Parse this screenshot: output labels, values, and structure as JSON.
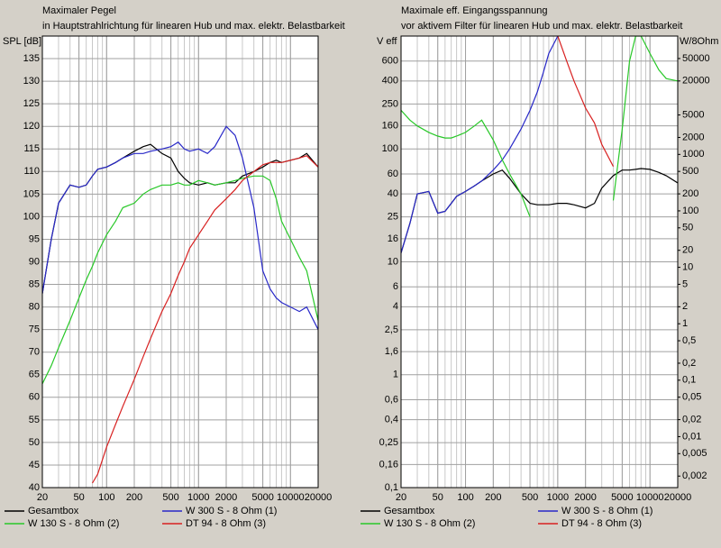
{
  "chart_data": [
    {
      "type": "line",
      "title": "Maximaler Pegel",
      "subtitle": "in Hauptstrahlrichtung für linearen Hub und max. elektr. Belastbarkeit",
      "y_label": "SPL [dB]",
      "xlog": true,
      "ylog": false,
      "grid": true,
      "xlim": [
        20,
        20000
      ],
      "ylim": [
        40,
        140
      ],
      "xticks": [
        20,
        50,
        100,
        200,
        500,
        1000,
        2000,
        5000,
        10000,
        20000
      ],
      "yticks": [
        40,
        45,
        50,
        55,
        60,
        65,
        70,
        75,
        80,
        85,
        90,
        95,
        100,
        105,
        110,
        115,
        120,
        125,
        130,
        135
      ],
      "x": [
        20,
        25,
        30,
        40,
        50,
        60,
        70,
        80,
        100,
        125,
        150,
        200,
        250,
        300,
        400,
        500,
        600,
        700,
        800,
        1000,
        1250,
        1500,
        2000,
        2500,
        3000,
        4000,
        5000,
        6000,
        7000,
        8000,
        10000,
        12500,
        15000,
        20000
      ],
      "series": [
        {
          "name": "Gesamtbox",
          "color": "#000000",
          "values": [
            83,
            95,
            103,
            107,
            106.5,
            107,
            109,
            110.5,
            111,
            112,
            113,
            114.5,
            115.5,
            116,
            114,
            113,
            110,
            108.5,
            107.5,
            107,
            107.5,
            107,
            107.5,
            107.5,
            109,
            110,
            111,
            112,
            112.5,
            112,
            112.5,
            113,
            114,
            111
          ]
        },
        {
          "name": "W 300 S - 8 Ohm (1)",
          "color": "#2828c8",
          "values": [
            83,
            95,
            103,
            107,
            106.5,
            107,
            109,
            110.5,
            111,
            112,
            113,
            114,
            114,
            114.5,
            115,
            115.5,
            116.5,
            115,
            114.5,
            115,
            114,
            115.5,
            120,
            118,
            113,
            102,
            88,
            84,
            82,
            81,
            80,
            79,
            80,
            75
          ]
        },
        {
          "name": "W 130 S - 8 Ohm (2)",
          "color": "#28c828",
          "values": [
            63,
            67,
            71,
            77,
            82,
            86,
            89,
            92,
            96,
            99,
            102,
            103,
            105,
            106,
            107,
            107,
            107.5,
            107,
            107,
            108,
            107.5,
            107,
            107.5,
            108,
            108.5,
            109,
            109,
            108,
            104,
            99,
            95,
            91,
            88,
            77
          ]
        },
        {
          "name": "DT 94 - 8 Ohm (3)",
          "color": "#d82020",
          "values": [
            null,
            null,
            null,
            null,
            null,
            null,
            41,
            43,
            49,
            54,
            58,
            64,
            69,
            73,
            79,
            83,
            87,
            90,
            93,
            96,
            99,
            101.5,
            104,
            106,
            108,
            110,
            111.5,
            112,
            112,
            112,
            112.5,
            113,
            113.5,
            111
          ]
        }
      ]
    },
    {
      "type": "line",
      "title": "Maximale eff. Eingangsspannung",
      "subtitle": "vor aktivem Filter für linearen Hub und max. elektr. Belastbarkeit",
      "y_label": "V eff",
      "y2_label": "W/8Ohm",
      "xlog": true,
      "ylog": true,
      "y2log": true,
      "grid": true,
      "xlim": [
        20,
        20000
      ],
      "ylim": [
        0.1,
        1000
      ],
      "y2lim": [
        0.00125,
        125000
      ],
      "xticks": [
        20,
        50,
        100,
        200,
        500,
        1000,
        2000,
        5000,
        10000,
        20000
      ],
      "yticks": [
        {
          "value": 0.1,
          "label": "0,1"
        },
        {
          "value": 0.16,
          "label": "0,16"
        },
        {
          "value": 0.25,
          "label": "0,25"
        },
        {
          "value": 0.4,
          "label": "0,4"
        },
        {
          "value": 0.6,
          "label": "0,6"
        },
        1,
        {
          "value": 1.6,
          "label": "1,6"
        },
        {
          "value": 2.5,
          "label": "2,5"
        },
        4,
        6,
        10,
        16,
        25,
        40,
        60,
        100,
        160,
        250,
        400,
        600
      ],
      "y2ticks": [
        {
          "value": 0.002,
          "label": "0,002"
        },
        {
          "value": 0.005,
          "label": "0,005"
        },
        {
          "value": 0.01,
          "label": "0,01"
        },
        {
          "value": 0.02,
          "label": "0,02"
        },
        {
          "value": 0.05,
          "label": "0,05"
        },
        {
          "value": 0.1,
          "label": "0,1"
        },
        {
          "value": 0.2,
          "label": "0,2"
        },
        {
          "value": 0.5,
          "label": "0,5"
        },
        1,
        2,
        5,
        10,
        20,
        50,
        100,
        200,
        500,
        1000,
        2000,
        5000,
        20000,
        50000
      ],
      "x": [
        20,
        25,
        30,
        40,
        50,
        60,
        70,
        80,
        100,
        125,
        150,
        200,
        250,
        300,
        400,
        500,
        600,
        700,
        800,
        1000,
        1250,
        1500,
        2000,
        2500,
        3000,
        4000,
        5000,
        6000,
        7000,
        8000,
        10000,
        12500,
        15000,
        20000
      ],
      "series": [
        {
          "name": "Gesamtbox",
          "color": "#000000",
          "values": [
            12,
            22,
            40,
            42,
            27,
            28,
            33,
            38,
            42,
            47,
            52,
            60,
            65,
            55,
            40,
            33,
            32,
            32,
            32,
            33,
            33,
            32,
            30,
            33,
            45,
            58,
            65,
            65,
            66,
            67,
            66,
            62,
            58,
            50
          ]
        },
        {
          "name": "W 300 S - 8 Ohm (1)",
          "color": "#2828c8",
          "values": [
            12,
            22,
            40,
            42,
            27,
            28,
            33,
            38,
            42,
            47,
            52,
            65,
            80,
            100,
            150,
            220,
            320,
            480,
            700,
            1000,
            null,
            null,
            null,
            null,
            null,
            null,
            null,
            null,
            null,
            null,
            null,
            null,
            null,
            null
          ]
        },
        {
          "name": "W 130 S - 8 Ohm (2)",
          "color": "#28c828",
          "values": [
            220,
            180,
            160,
            140,
            130,
            125,
            125,
            130,
            140,
            160,
            180,
            120,
            80,
            60,
            40,
            25,
            null,
            null,
            null,
            null,
            null,
            null,
            null,
            null,
            null,
            35,
            150,
            600,
            1000,
            1000,
            700,
            500,
            420,
            400
          ]
        },
        {
          "name": "DT 94 - 8 Ohm (3)",
          "color": "#d82020",
          "values": [
            null,
            null,
            null,
            null,
            null,
            null,
            null,
            null,
            null,
            null,
            null,
            null,
            null,
            null,
            null,
            null,
            null,
            null,
            null,
            1000,
            600,
            400,
            230,
            170,
            110,
            70,
            null,
            null,
            null,
            null,
            null,
            null,
            null,
            null
          ]
        }
      ]
    }
  ]
}
